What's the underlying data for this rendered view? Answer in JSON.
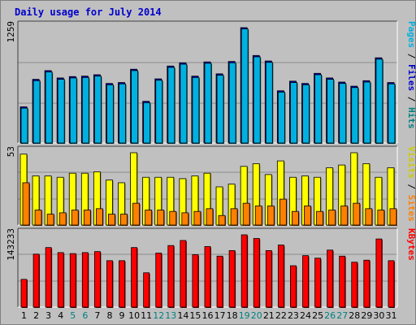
{
  "title": "Daily usage for July 2014",
  "chart_data": {
    "type": "bar",
    "title": "Daily usage for July 2014",
    "categories": [
      "1",
      "2",
      "3",
      "4",
      "5",
      "6",
      "7",
      "8",
      "9",
      "10",
      "11",
      "12",
      "13",
      "14",
      "15",
      "16",
      "17",
      "18",
      "19",
      "20",
      "21",
      "22",
      "23",
      "24",
      "25",
      "26",
      "27",
      "28",
      "29",
      "30",
      "31"
    ],
    "weekend_days": [
      "5",
      "6",
      "12",
      "13",
      "19",
      "20",
      "26",
      "27"
    ],
    "panels": [
      {
        "id": "top",
        "max_label": "1259",
        "ymax": 1259,
        "right_labels": [
          {
            "text": "Pages",
            "color": "#00b0e0"
          },
          {
            "text": " / ",
            "color": "#000000"
          },
          {
            "text": "Files",
            "color": "#0000cc"
          },
          {
            "text": " / ",
            "color": "#000000"
          },
          {
            "text": "Hits",
            "color": "#008080"
          }
        ],
        "series": [
          {
            "name": "Hits",
            "color": "#008080",
            "values": [
              0,
              0,
              0,
              0,
              0,
              0,
              0,
              0,
              0,
              0,
              0,
              0,
              0,
              0,
              0,
              0,
              0,
              0,
              0,
              0,
              0,
              0,
              0,
              0,
              0,
              0,
              0,
              0,
              0,
              0,
              0
            ]
          },
          {
            "name": "Files",
            "color": "#0000cc",
            "values": [
              395,
              695,
              790,
              710,
              725,
              730,
              745,
              650,
              660,
              805,
              455,
              700,
              840,
              875,
              730,
              885,
              755,
              890,
              1259,
              955,
              895,
              570,
              675,
              650,
              760,
              710,
              665,
              620,
              680,
              930,
              660
            ]
          },
          {
            "name": "Pages",
            "color": "#00b0e0",
            "values": [
              380,
              680,
              775,
              695,
              710,
              715,
              730,
              635,
              645,
              790,
              440,
              685,
              825,
              860,
              715,
              870,
              740,
              875,
              1245,
              940,
              880,
              555,
              660,
              635,
              745,
              695,
              650,
              605,
              665,
              915,
              645
            ]
          }
        ]
      },
      {
        "id": "middle",
        "max_label": "53",
        "ymax": 53,
        "right_labels": [
          {
            "text": "Visits",
            "color": "#cccc00"
          },
          {
            "text": " / ",
            "color": "#000000"
          },
          {
            "text": "Sites",
            "color": "#ff8000"
          }
        ],
        "series": [
          {
            "name": "Visits",
            "color": "#ffff00",
            "values": [
              52,
              36,
              36,
              35,
              38,
              38,
              39,
              33,
              31,
              53,
              35,
              35,
              35,
              34,
              36,
              38,
              28,
              30,
              43,
              45,
              37,
              47,
              35,
              36,
              35,
              42,
              44,
              53,
              45,
              35,
              42
            ]
          },
          {
            "name": "Sites",
            "color": "#ff8000",
            "values": [
              31,
              11,
              8,
              9,
              11,
              11,
              12,
              8,
              8,
              16,
              11,
              11,
              10,
              9,
              10,
              12,
              7,
              12,
              16,
              14,
              14,
              19,
              10,
              14,
              10,
              11,
              14,
              16,
              12,
              11,
              12
            ]
          }
        ]
      },
      {
        "id": "bottom",
        "max_label": "143233",
        "ymax": 143233,
        "right_labels": [
          {
            "text": "KBytes",
            "color": "#ff0000"
          }
        ],
        "series": [
          {
            "name": "KBytes",
            "color": "#ff0000",
            "values": [
              55000,
              105000,
              118000,
              108000,
              106000,
              108000,
              110000,
              92000,
              92000,
              118000,
              68000,
              107000,
              122000,
              132000,
              104000,
              120000,
              101000,
              112000,
              143233,
              136000,
              112000,
              123000,
              82000,
              102000,
              97000,
              113000,
              101000,
              89000,
              93000,
              135000,
              92000
            ]
          }
        ]
      }
    ]
  }
}
